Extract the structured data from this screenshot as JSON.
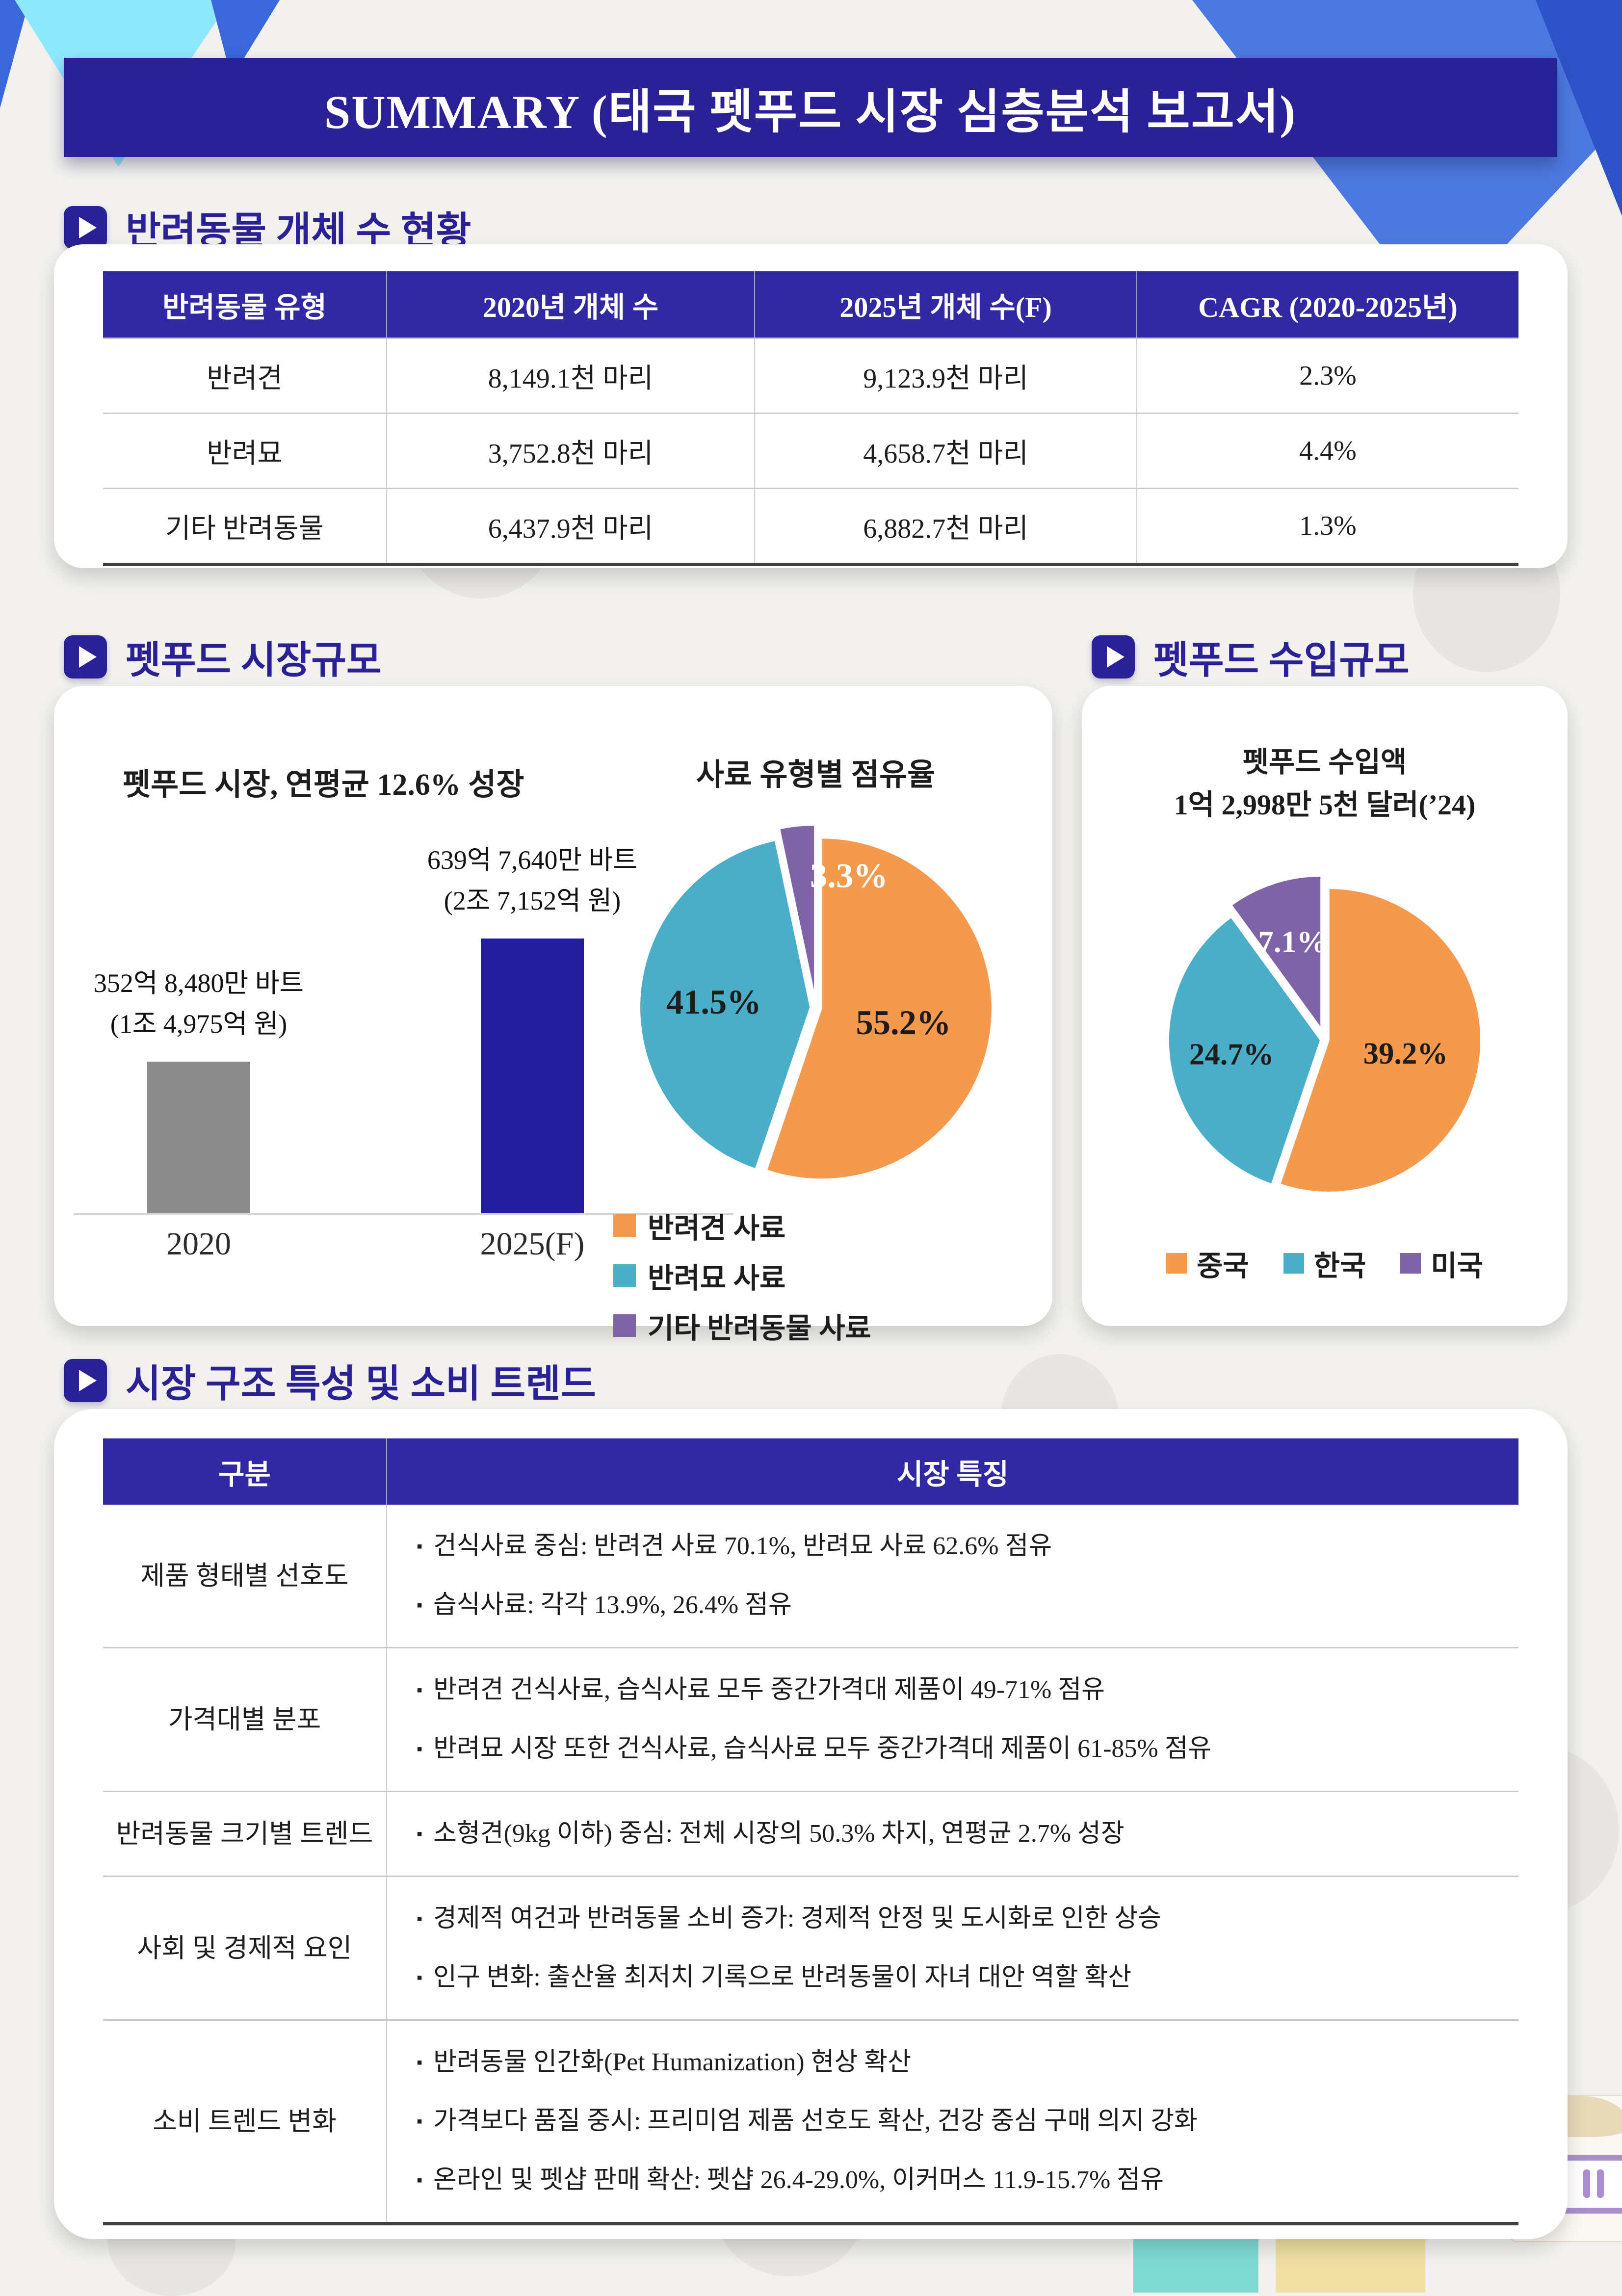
{
  "banner": {
    "title": "SUMMARY (태국 펫푸드 시장 심층분석 보고서)"
  },
  "theme": {
    "navy": "#2B2196",
    "table_header_blue": "#3128A4",
    "bar_gray": "#8C8C8C",
    "bar_blue": "#221C9F",
    "orange": "#F59A4D",
    "teal": "#4BAEC8",
    "purple": "#7E63A6"
  },
  "population": {
    "heading": "반려동물 개체 수 현황",
    "headers": [
      "반려동물 유형",
      "2020년 개체 수",
      "2025년 개체 수(F)",
      "CAGR (2020-2025년)"
    ],
    "rows": [
      [
        "반려견",
        "8,149.1천 마리",
        "9,123.9천 마리",
        "2.3%"
      ],
      [
        "반려묘",
        "3,752.8천 마리",
        "4,658.7천 마리",
        "4.4%"
      ],
      [
        "기타 반려동물",
        "6,437.9천 마리",
        "6,882.7천 마리",
        "1.3%"
      ]
    ]
  },
  "market": {
    "heading": "펫푸드 시장규모"
  },
  "imports": {
    "heading": "펫푸드 수입규모",
    "title_line1": "펫푸드 수입액",
    "title_line2": "1억 2,998만 5천 달러(’24)"
  },
  "trends": {
    "heading": "시장 구조 특성 및 소비 트렌드",
    "headers": [
      "구분",
      "시장 특징"
    ],
    "bullet_char": "▪",
    "rows": [
      {
        "category": "제품 형태별 선호도",
        "bullets": [
          "건식사료 중심: 반려견 사료 70.1%, 반려묘 사료 62.6% 점유",
          "습식사료: 각각 13.9%, 26.4% 점유"
        ]
      },
      {
        "category": "가격대별 분포",
        "bullets": [
          "반려견 건식사료, 습식사료 모두 중간가격대 제품이 49-71% 점유",
          "반려묘 시장 또한 건식사료, 습식사료 모두 중간가격대 제품이 61-85% 점유"
        ]
      },
      {
        "category": "반려동물 크기별 트렌드",
        "bullets": [
          "소형견(9kg 이하) 중심: 전체 시장의 50.3% 차지, 연평균 2.7% 성장"
        ]
      },
      {
        "category": "사회 및 경제적 요인",
        "bullets": [
          "경제적 여건과 반려동물 소비 증가: 경제적 안정 및 도시화로 인한 상승",
          "인구 변화: 출산율 최저치 기록으로 반려동물이 자녀 대안 역할 확산"
        ]
      },
      {
        "category": "소비 트렌드 변화",
        "bullets": [
          "반려동물 인간화(Pet Humanization) 현상 확산",
          "가격보다 품질 중시: 프리미엄 제품 선호도 확산, 건강 중심 구매 의지 강화",
          "온라인 및 펫샵 판매 확산: 펫샵 26.4-29.0%, 이커머스 11.9-15.7% 점유"
        ]
      }
    ]
  },
  "chart_data": [
    {
      "type": "bar",
      "title": "펫푸드 시장, 연평균 12.6% 성장",
      "categories": [
        "2020",
        "2025(F)"
      ],
      "values": [
        352.848,
        639.764
      ],
      "value_unit": "억 바트",
      "bar_labels": [
        [
          "352억 8,480만 바트",
          "(1조 4,975억 원)"
        ],
        [
          "639억 7,640만 바트",
          "(2조 7,152억 원)"
        ]
      ],
      "colors": [
        "#8C8C8C",
        "#221C9F"
      ],
      "ylim": [
        0,
        640
      ],
      "grid": false
    },
    {
      "type": "pie",
      "title": "사료 유형별 점유율",
      "labels": [
        "반려견 사료",
        "반려묘 사료",
        "기타 반려동물 사료"
      ],
      "values": [
        55.2,
        41.5,
        3.3
      ],
      "colors": [
        "#F59A4D",
        "#4BAEC8",
        "#7E63A6"
      ],
      "legend_position": "bottom-left"
    },
    {
      "type": "pie",
      "title": "펫푸드 수입액 1억 2,998만 5천 달러(’24)",
      "labels": [
        "중국",
        "한국",
        "미국"
      ],
      "values": [
        39.2,
        24.7,
        7.1
      ],
      "colors": [
        "#F59A4D",
        "#4BAEC8",
        "#7E63A6"
      ],
      "note": "slices drawn scaled to full circle",
      "legend_position": "bottom"
    }
  ]
}
